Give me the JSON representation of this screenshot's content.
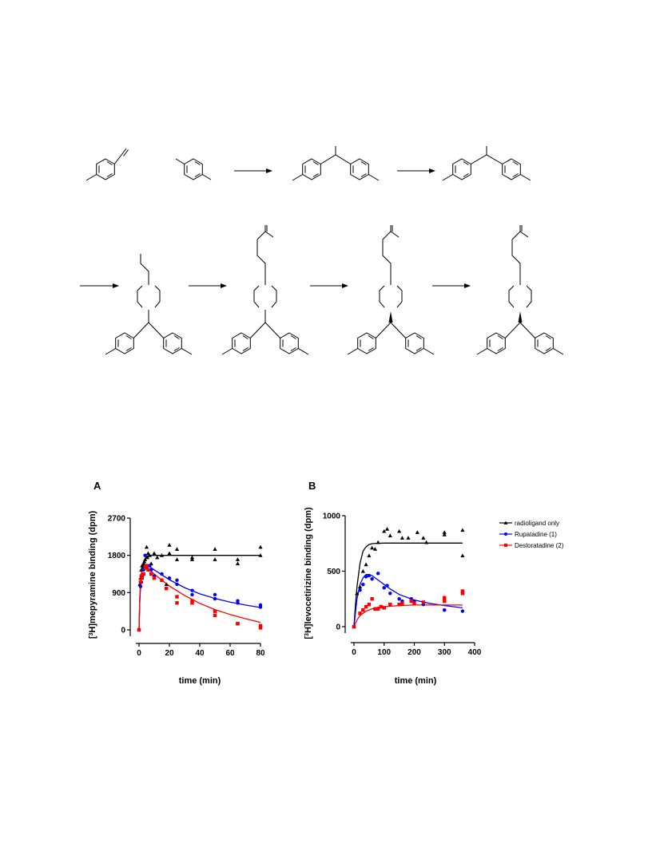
{
  "chart_data": [
    {
      "type": "scatter",
      "panel_label": "A",
      "title": "",
      "xlabel": "time (min)",
      "ylabel_sup": "3",
      "ylabel_prefix": "[",
      "ylabel_rest": "H]mepyramine binding (dpm)",
      "xlim": [
        0,
        80
      ],
      "ylim": [
        0,
        2700
      ],
      "xticks": [
        0,
        20,
        40,
        60,
        80
      ],
      "yticks": [
        0,
        900,
        1800,
        2700
      ],
      "series": [
        {
          "key": "radioligand",
          "color": "#000000",
          "marker": "triangle",
          "points": [
            [
              0.5,
              1100
            ],
            [
              1,
              1250
            ],
            [
              1.5,
              1450
            ],
            [
              2,
              1550
            ],
            [
              2.5,
              1500
            ],
            [
              3,
              1600
            ],
            [
              3.5,
              1650
            ],
            [
              4,
              1700
            ],
            [
              5,
              2000
            ],
            [
              5.5,
              1750
            ],
            [
              6,
              1850
            ],
            [
              7,
              1800
            ],
            [
              8,
              1600
            ],
            [
              10,
              1850
            ],
            [
              12,
              1750
            ],
            [
              15,
              1800
            ],
            [
              18,
              1100
            ],
            [
              20,
              2050
            ],
            [
              20,
              1850
            ],
            [
              25,
              1950
            ],
            [
              25,
              1700
            ],
            [
              35,
              1750
            ],
            [
              35,
              1700
            ],
            [
              50,
              1950
            ],
            [
              50,
              1700
            ],
            [
              65,
              1700
            ],
            [
              65,
              1600
            ],
            [
              80,
              2000
            ],
            [
              80,
              1800
            ]
          ],
          "fit": [
            [
              0,
              0
            ],
            [
              0.5,
              700
            ],
            [
              1,
              1050
            ],
            [
              1.5,
              1300
            ],
            [
              2,
              1460
            ],
            [
              3,
              1630
            ],
            [
              4,
              1720
            ],
            [
              5,
              1770
            ],
            [
              6,
              1790
            ],
            [
              8,
              1800
            ],
            [
              80,
              1800
            ]
          ]
        },
        {
          "key": "rupatadine",
          "color": "#0000ff",
          "marker": "circle",
          "points": [
            [
              0,
              0
            ],
            [
              1,
              1050
            ],
            [
              1.5,
              1150
            ],
            [
              2,
              1300
            ],
            [
              3,
              1450
            ],
            [
              4,
              1800
            ],
            [
              5,
              1500
            ],
            [
              7,
              1550
            ],
            [
              8,
              1450
            ],
            [
              10,
              1300
            ],
            [
              15,
              1350
            ],
            [
              20,
              1250
            ],
            [
              25,
              1200
            ],
            [
              25,
              1100
            ],
            [
              35,
              950
            ],
            [
              35,
              850
            ],
            [
              50,
              850
            ],
            [
              50,
              750
            ],
            [
              65,
              700
            ],
            [
              65,
              650
            ],
            [
              80,
              600
            ],
            [
              80,
              550
            ]
          ],
          "fit": [
            [
              0,
              0
            ],
            [
              0.5,
              700
            ],
            [
              1,
              1100
            ],
            [
              1.5,
              1330
            ],
            [
              2,
              1450
            ],
            [
              3,
              1550
            ],
            [
              4,
              1580
            ],
            [
              5,
              1570
            ],
            [
              8,
              1500
            ],
            [
              10,
              1450
            ],
            [
              15,
              1330
            ],
            [
              20,
              1210
            ],
            [
              30,
              1020
            ],
            [
              40,
              870
            ],
            [
              50,
              760
            ],
            [
              60,
              670
            ],
            [
              70,
              600
            ],
            [
              80,
              540
            ]
          ]
        },
        {
          "key": "desloratadine",
          "color": "#ff0000",
          "marker": "square",
          "points": [
            [
              0,
              0
            ],
            [
              1,
              1150
            ],
            [
              1.5,
              1300
            ],
            [
              2,
              1250
            ],
            [
              3,
              1350
            ],
            [
              4,
              1500
            ],
            [
              5,
              1550
            ],
            [
              6,
              1450
            ],
            [
              8,
              1350
            ],
            [
              10,
              1250
            ],
            [
              15,
              1200
            ],
            [
              18,
              1000
            ],
            [
              25,
              800
            ],
            [
              25,
              650
            ],
            [
              35,
              650
            ],
            [
              35,
              700
            ],
            [
              50,
              450
            ],
            [
              50,
              350
            ],
            [
              65,
              150
            ],
            [
              65,
              150
            ],
            [
              80,
              100
            ],
            [
              80,
              50
            ]
          ],
          "fit": [
            [
              0,
              0
            ],
            [
              0.5,
              800
            ],
            [
              1,
              1150
            ],
            [
              1.5,
              1360
            ],
            [
              2,
              1450
            ],
            [
              3,
              1520
            ],
            [
              4,
              1520
            ],
            [
              5,
              1500
            ],
            [
              8,
              1410
            ],
            [
              10,
              1350
            ],
            [
              15,
              1200
            ],
            [
              20,
              1060
            ],
            [
              30,
              830
            ],
            [
              40,
              640
            ],
            [
              50,
              490
            ],
            [
              60,
              370
            ],
            [
              70,
              270
            ],
            [
              80,
              180
            ]
          ]
        }
      ]
    },
    {
      "type": "scatter",
      "panel_label": "B",
      "title": "",
      "xlabel": "time (min)",
      "ylabel_sup": "3",
      "ylabel_prefix": "[",
      "ylabel_rest": "H]levocetirizine binding (dpm)",
      "xlim": [
        0,
        400
      ],
      "ylim": [
        0,
        1000
      ],
      "xticks": [
        0,
        100,
        200,
        300,
        400
      ],
      "yticks": [
        0,
        500,
        1000
      ],
      "series": [
        {
          "key": "radioligand",
          "color": "#000000",
          "marker": "triangle",
          "points": [
            [
              0,
              0
            ],
            [
              10,
              300
            ],
            [
              20,
              360
            ],
            [
              30,
              500
            ],
            [
              40,
              560
            ],
            [
              50,
              640
            ],
            [
              60,
              710
            ],
            [
              70,
              700
            ],
            [
              80,
              760
            ],
            [
              100,
              860
            ],
            [
              110,
              880
            ],
            [
              120,
              820
            ],
            [
              150,
              860
            ],
            [
              160,
              800
            ],
            [
              180,
              800
            ],
            [
              210,
              850
            ],
            [
              230,
              800
            ],
            [
              240,
              760
            ],
            [
              300,
              850
            ],
            [
              300,
              830
            ],
            [
              360,
              870
            ],
            [
              360,
              640
            ]
          ],
          "fit": [
            [
              0,
              0
            ],
            [
              5,
              200
            ],
            [
              10,
              360
            ],
            [
              20,
              570
            ],
            [
              30,
              680
            ],
            [
              40,
              720
            ],
            [
              50,
              740
            ],
            [
              60,
              748
            ],
            [
              80,
              752
            ],
            [
              100,
              753
            ],
            [
              360,
              753
            ]
          ]
        },
        {
          "key": "rupatadine",
          "color": "#0000ff",
          "marker": "circle",
          "points": [
            [
              0,
              0
            ],
            [
              20,
              330
            ],
            [
              30,
              380
            ],
            [
              40,
              450
            ],
            [
              50,
              460
            ],
            [
              60,
              430
            ],
            [
              80,
              480
            ],
            [
              100,
              350
            ],
            [
              110,
              370
            ],
            [
              120,
              300
            ],
            [
              150,
              250
            ],
            [
              160,
              230
            ],
            [
              190,
              250
            ],
            [
              200,
              230
            ],
            [
              230,
              200
            ],
            [
              300,
              150
            ],
            [
              300,
              150
            ],
            [
              360,
              140
            ]
          ],
          "fit": [
            [
              0,
              0
            ],
            [
              10,
              250
            ],
            [
              20,
              380
            ],
            [
              30,
              440
            ],
            [
              40,
              470
            ],
            [
              50,
              470
            ],
            [
              60,
              460
            ],
            [
              80,
              420
            ],
            [
              100,
              380
            ],
            [
              120,
              340
            ],
            [
              150,
              290
            ],
            [
              200,
              240
            ],
            [
              250,
              210
            ],
            [
              300,
              190
            ],
            [
              360,
              170
            ]
          ]
        },
        {
          "key": "desloratadine",
          "color": "#ff0000",
          "marker": "square",
          "points": [
            [
              0,
              0
            ],
            [
              20,
              120
            ],
            [
              30,
              150
            ],
            [
              40,
              180
            ],
            [
              50,
              200
            ],
            [
              60,
              250
            ],
            [
              70,
              160
            ],
            [
              80,
              160
            ],
            [
              90,
              180
            ],
            [
              100,
              170
            ],
            [
              120,
              200
            ],
            [
              150,
              200
            ],
            [
              160,
              210
            ],
            [
              190,
              230
            ],
            [
              200,
              210
            ],
            [
              230,
              220
            ],
            [
              300,
              260
            ],
            [
              300,
              230
            ],
            [
              360,
              300
            ],
            [
              360,
              320
            ]
          ],
          "fit": [
            [
              0,
              0
            ],
            [
              10,
              60
            ],
            [
              20,
              100
            ],
            [
              30,
              120
            ],
            [
              40,
              140
            ],
            [
              60,
              160
            ],
            [
              80,
              175
            ],
            [
              100,
              180
            ],
            [
              150,
              190
            ],
            [
              200,
              195
            ],
            [
              250,
              195
            ],
            [
              300,
              195
            ],
            [
              360,
              195
            ]
          ]
        }
      ]
    }
  ],
  "legend": {
    "items": [
      {
        "key": "radioligand",
        "label": "radioligand only",
        "color": "#000000",
        "marker": "triangle"
      },
      {
        "key": "rupatadine",
        "label": "Rupatadine (1)",
        "color": "#0000ff",
        "marker": "circle"
      },
      {
        "key": "desloratadine",
        "label": "Desloratadine (2)",
        "color": "#ff0000",
        "marker": "square"
      }
    ]
  }
}
